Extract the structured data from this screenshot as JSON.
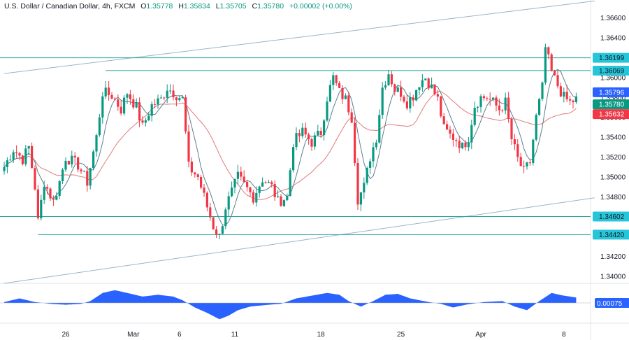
{
  "header": {
    "symbol": "U.S. Dollar / Canadian Dollar, 4h, FXCM",
    "open_label": "O",
    "open": "1.35778",
    "high_label": "H",
    "high": "1.35834",
    "low_label": "L",
    "low": "1.35705",
    "close_label": "C",
    "close": "1.35780",
    "change": "+0.00002 (+0.00%)"
  },
  "colors": {
    "up": "#089981",
    "down": "#f23645",
    "fast_ma": "#5d7e8f",
    "slow_ma": "#e07b7b",
    "level_line": "#26a69a",
    "channel": "#9ab4c8",
    "histogram": "#2962ff",
    "price_tag": "#089981",
    "ma_tag": "#2962ff",
    "red_tag": "#f23645",
    "level_tag": "#26c6da"
  },
  "chart_data": {
    "type": "candlestick",
    "y_axis": {
      "range": [
        1.3393,
        1.3678
      ],
      "tick_labels": [
        "1.36600",
        "1.36400",
        "1.36000",
        "1.35800",
        "1.35600",
        "1.35400",
        "1.35200",
        "1.35000",
        "1.34800",
        "1.34200",
        "1.34000"
      ],
      "tick_values": [
        1.366,
        1.364,
        1.36,
        1.358,
        1.356,
        1.354,
        1.352,
        1.35,
        1.348,
        1.342,
        1.34
      ]
    },
    "x_axis": {
      "tick_labels": [
        "26",
        "Mar",
        "6",
        "11",
        "18",
        "25",
        "Apr",
        "8"
      ],
      "tick_bar_index": [
        20,
        42,
        57,
        75,
        103,
        129,
        155,
        182
      ]
    },
    "horizontal_levels": [
      {
        "label": "1.36199",
        "value": 1.36199
      },
      {
        "label": "1.36069",
        "value": 1.36069
      },
      {
        "label": "1.34602",
        "value": 1.34602
      },
      {
        "label": "1.34420",
        "value": 1.3442
      }
    ],
    "level_segments": [
      {
        "value": 1.3607,
        "from_bar": 33
      },
      {
        "value": 1.3442,
        "from_bar": 11
      }
    ],
    "channel": {
      "upper": {
        "from": [
          0,
          1.3604
        ],
        "to": [
          192,
          1.3677
        ]
      },
      "lower": {
        "from": [
          0,
          1.3393
        ],
        "to": [
          192,
          1.3479
        ]
      }
    },
    "price_tags": [
      {
        "label": "1.35796",
        "value": 1.35796,
        "kind": "ma"
      },
      {
        "label": "1.35780",
        "value": 1.3578,
        "kind": "price"
      },
      {
        "label": "1.35632",
        "value": 1.35632,
        "kind": "red"
      }
    ],
    "waypoints": [
      [
        0,
        1.351
      ],
      [
        3,
        1.3528
      ],
      [
        6,
        1.3518
      ],
      [
        8,
        1.353
      ],
      [
        10,
        1.349
      ],
      [
        11,
        1.3455
      ],
      [
        13,
        1.3495
      ],
      [
        16,
        1.3475
      ],
      [
        18,
        1.3495
      ],
      [
        20,
        1.352
      ],
      [
        24,
        1.3512
      ],
      [
        27,
        1.3495
      ],
      [
        30,
        1.354
      ],
      [
        32,
        1.3585
      ],
      [
        35,
        1.3582
      ],
      [
        38,
        1.3568
      ],
      [
        40,
        1.3585
      ],
      [
        43,
        1.357
      ],
      [
        45,
        1.355
      ],
      [
        48,
        1.3572
      ],
      [
        51,
        1.3578
      ],
      [
        53,
        1.359
      ],
      [
        55,
        1.3585
      ],
      [
        58,
        1.3578
      ],
      [
        60,
        1.351
      ],
      [
        63,
        1.35
      ],
      [
        66,
        1.347
      ],
      [
        68,
        1.345
      ],
      [
        70,
        1.344
      ],
      [
        72,
        1.347
      ],
      [
        74,
        1.3485
      ],
      [
        76,
        1.35
      ],
      [
        79,
        1.3488
      ],
      [
        81,
        1.348
      ],
      [
        84,
        1.3498
      ],
      [
        87,
        1.349
      ],
      [
        89,
        1.3475
      ],
      [
        92,
        1.348
      ],
      [
        94,
        1.3535
      ],
      [
        97,
        1.3545
      ],
      [
        100,
        1.3535
      ],
      [
        103,
        1.3545
      ],
      [
        105,
        1.358
      ],
      [
        107,
        1.36
      ],
      [
        109,
        1.3585
      ],
      [
        111,
        1.3578
      ],
      [
        113,
        1.356
      ],
      [
        115,
        1.3478
      ],
      [
        117,
        1.349
      ],
      [
        119,
        1.352
      ],
      [
        121,
        1.354
      ],
      [
        123,
        1.359
      ],
      [
        125,
        1.3605
      ],
      [
        127,
        1.3588
      ],
      [
        129,
        1.3585
      ],
      [
        131,
        1.3575
      ],
      [
        133,
        1.3582
      ],
      [
        135,
        1.3595
      ],
      [
        137,
        1.36
      ],
      [
        139,
        1.359
      ],
      [
        141,
        1.3578
      ],
      [
        143,
        1.3548
      ],
      [
        145,
        1.3542
      ],
      [
        147,
        1.3538
      ],
      [
        149,
        1.353
      ],
      [
        151,
        1.354
      ],
      [
        153,
        1.3572
      ],
      [
        155,
        1.358
      ],
      [
        157,
        1.358
      ],
      [
        159,
        1.3575
      ],
      [
        161,
        1.3568
      ],
      [
        163,
        1.3575
      ],
      [
        165,
        1.3538
      ],
      [
        167,
        1.3518
      ],
      [
        169,
        1.3505
      ],
      [
        171,
        1.3515
      ],
      [
        173,
        1.356
      ],
      [
        175,
        1.359
      ],
      [
        176,
        1.363
      ],
      [
        178,
        1.3605
      ],
      [
        180,
        1.3592
      ],
      [
        182,
        1.358
      ],
      [
        184,
        1.3575
      ],
      [
        186,
        1.3578
      ]
    ],
    "oscillator": {
      "label": "0.00075",
      "range": [
        -1,
        1
      ],
      "waypoints": [
        [
          0,
          0.05
        ],
        [
          5,
          0.25
        ],
        [
          10,
          0.05
        ],
        [
          15,
          -0.05
        ],
        [
          20,
          -0.1
        ],
        [
          25,
          -0.05
        ],
        [
          28,
          0.1
        ],
        [
          32,
          0.55
        ],
        [
          36,
          0.7
        ],
        [
          40,
          0.55
        ],
        [
          45,
          0.35
        ],
        [
          50,
          0.45
        ],
        [
          55,
          0.35
        ],
        [
          58,
          0.15
        ],
        [
          62,
          -0.25
        ],
        [
          66,
          -0.55
        ],
        [
          70,
          -0.9
        ],
        [
          73,
          -0.7
        ],
        [
          76,
          -0.4
        ],
        [
          80,
          -0.2
        ],
        [
          86,
          -0.1
        ],
        [
          90,
          -0.05
        ],
        [
          95,
          0.25
        ],
        [
          100,
          0.4
        ],
        [
          105,
          0.55
        ],
        [
          109,
          0.45
        ],
        [
          112,
          0.1
        ],
        [
          116,
          -0.2
        ],
        [
          120,
          0.1
        ],
        [
          124,
          0.45
        ],
        [
          128,
          0.5
        ],
        [
          132,
          0.25
        ],
        [
          138,
          0.05
        ],
        [
          142,
          -0.05
        ],
        [
          146,
          -0.25
        ],
        [
          150,
          -0.1
        ],
        [
          156,
          0.05
        ],
        [
          162,
          0.1
        ],
        [
          166,
          -0.2
        ],
        [
          170,
          -0.4
        ],
        [
          174,
          0.1
        ],
        [
          178,
          0.55
        ],
        [
          182,
          0.4
        ],
        [
          186,
          0.3
        ]
      ]
    }
  }
}
